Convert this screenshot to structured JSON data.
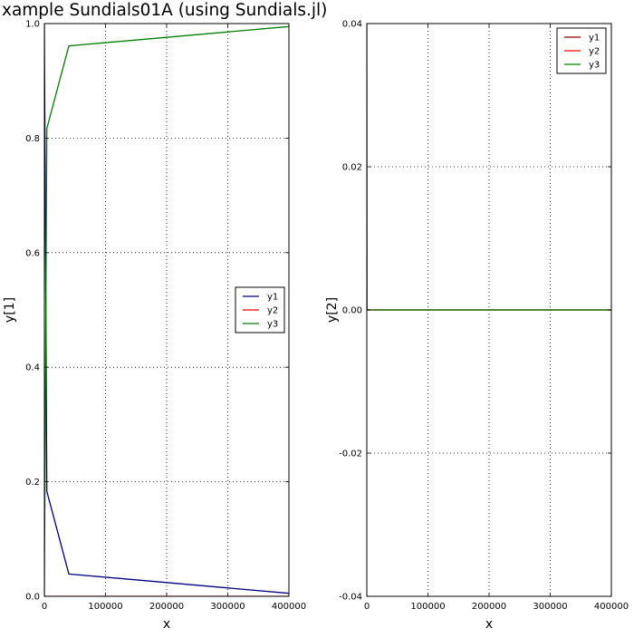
{
  "figure": {
    "title": "xample Sundials01A (using Sundials.jl)"
  },
  "chart_data": [
    {
      "type": "line",
      "xlabel": "x",
      "ylabel": "y[1]",
      "xlim": [
        0,
        400000
      ],
      "ylim": [
        0,
        1.0
      ],
      "xticks": [
        0,
        100000,
        200000,
        300000,
        400000
      ],
      "xtick_labels": [
        "0",
        "100000",
        "200000",
        "300000",
        "400000"
      ],
      "yticks": [
        0,
        0.2,
        0.4,
        0.6,
        0.8,
        1.0
      ],
      "ytick_labels": [
        "0.0",
        "0.2",
        "0.4",
        "0.6",
        "0.8",
        "1.0"
      ],
      "grid": true,
      "legend_position": "center-right",
      "series": [
        {
          "name": "y1",
          "color": "#000080",
          "x": [
            0,
            40,
            400,
            4000,
            40000,
            400000
          ],
          "y": [
            1.0,
            0.9851,
            0.9055,
            0.1832,
            0.039,
            0.0052
          ]
        },
        {
          "name": "y2",
          "color": "#ff0000",
          "x": [
            0,
            40,
            400,
            4000,
            40000,
            400000
          ],
          "y": [
            0,
            3.34e-05,
            2.24e-05,
            8.9e-06,
            1.6e-06,
            1e-07
          ]
        },
        {
          "name": "y3",
          "color": "#008000",
          "x": [
            0,
            40,
            400,
            4000,
            40000,
            400000
          ],
          "y": [
            0,
            0.0148,
            0.0945,
            0.8168,
            0.961,
            0.9948
          ]
        }
      ]
    },
    {
      "type": "line",
      "xlabel": "x",
      "ylabel": "y[2]",
      "xlim": [
        0,
        400000
      ],
      "ylim": [
        -0.04,
        0.04
      ],
      "xticks": [
        0,
        100000,
        200000,
        300000,
        400000
      ],
      "xtick_labels": [
        "0",
        "100000",
        "200000",
        "300000",
        "400000"
      ],
      "yticks": [
        -0.04,
        -0.02,
        0.0,
        0.02,
        0.04
      ],
      "ytick_labels": [
        "-0.04",
        "-0.02",
        "0.00",
        "0.02",
        "0.04"
      ],
      "grid": true,
      "legend_position": "top-right",
      "series": [
        {
          "name": "y1",
          "color": "#8b0000",
          "x": [
            0,
            40,
            400,
            4000,
            40000,
            400000
          ],
          "y": [
            0,
            0,
            0,
            0,
            0,
            0
          ]
        },
        {
          "name": "y2",
          "color": "#ff0000",
          "x": [
            0,
            40,
            400,
            4000,
            40000,
            400000
          ],
          "y": [
            0,
            0,
            0,
            0,
            0,
            0
          ]
        },
        {
          "name": "y3",
          "color": "#008000",
          "x": [
            0,
            40,
            400,
            4000,
            40000,
            400000
          ],
          "y": [
            0.04,
            0.035,
            0.0,
            0.0,
            0.0,
            0.0
          ]
        }
      ]
    }
  ]
}
